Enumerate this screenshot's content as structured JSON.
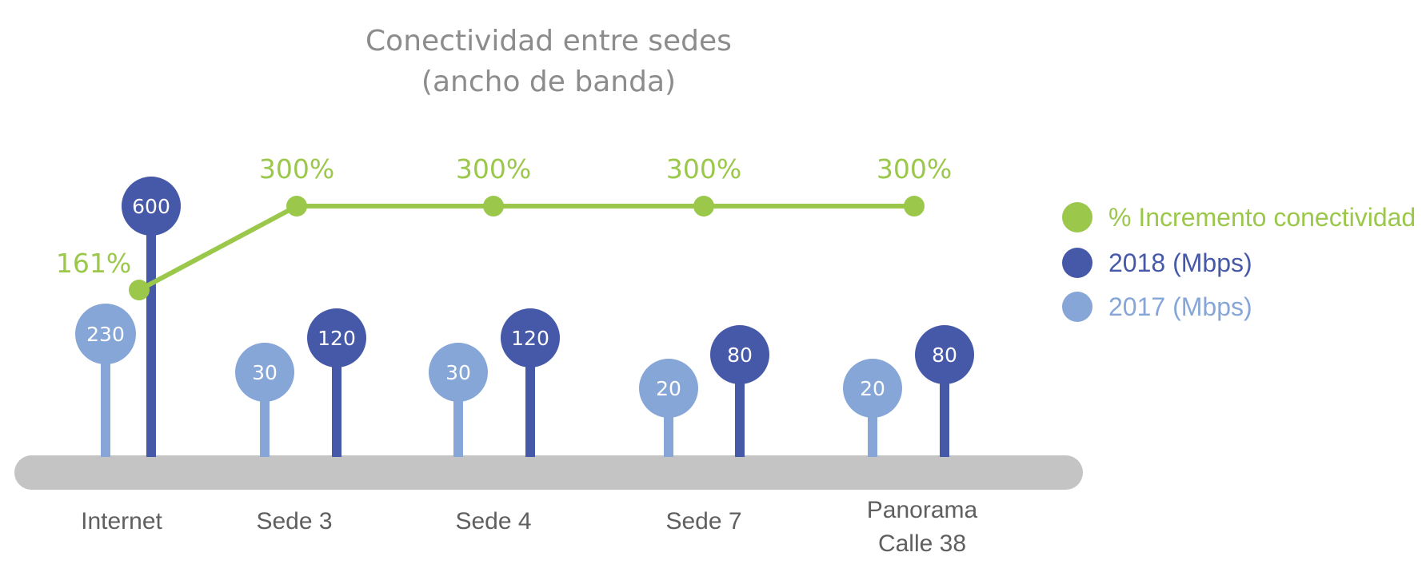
{
  "chart_data": {
    "type": "bar",
    "title": "Conectividad entre sedes",
    "subtitle": "(ancho de banda)",
    "categories": [
      "Internet",
      "Sede 3",
      "Sede 4",
      "Sede 7",
      "Panorama Calle 38"
    ],
    "category_lines": [
      [
        "Internet"
      ],
      [
        "Sede 3"
      ],
      [
        "Sede 4"
      ],
      [
        "Sede 7"
      ],
      [
        "Panorama",
        "Calle 38"
      ]
    ],
    "series": [
      {
        "name": "2017 (Mbps)",
        "values": [
          230,
          30,
          30,
          20,
          20
        ],
        "labels": [
          "230",
          "30",
          "30",
          "20",
          "20"
        ],
        "color": "#86a6d8"
      },
      {
        "name": "2018 (Mbps)",
        "values": [
          600,
          120,
          120,
          80,
          80
        ],
        "labels": [
          "600",
          "120",
          "120",
          "80",
          "80"
        ],
        "color": "#4659a8"
      },
      {
        "name": "% Incremento conectividad",
        "type": "line",
        "values": [
          161,
          300,
          300,
          300,
          300
        ],
        "labels": [
          "161%",
          "300%",
          "300%",
          "300%",
          "300%"
        ],
        "color": "#9bc84b"
      }
    ],
    "legend_position": "right",
    "baseline_color": "#c4c4c4",
    "category_label_color": "#5f5f5f",
    "title_color": "#8c8c8c"
  }
}
